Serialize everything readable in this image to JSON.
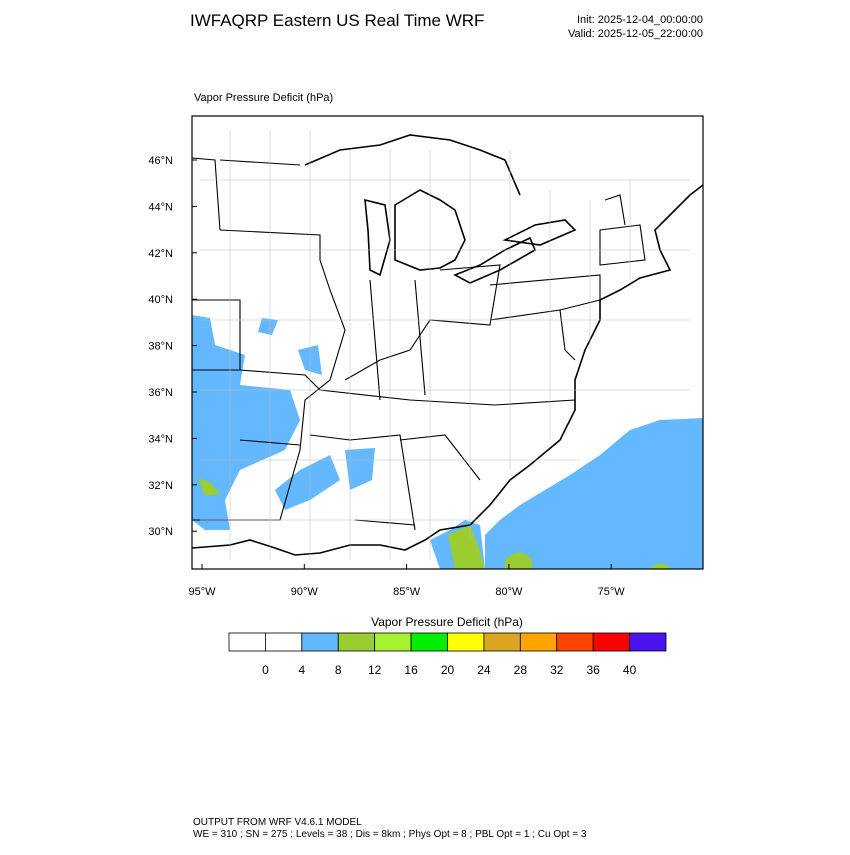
{
  "header": {
    "title": "IWFAQRP Eastern US Real Time WRF",
    "init": "Init: 2025-12-04_00:00:00",
    "valid": "Valid: 2025-12-05_22:00:00"
  },
  "map": {
    "label": "Vapor Pressure Deficit   (hPa)",
    "lat_labels": [
      "46°N",
      "44°N",
      "42°N",
      "40°N",
      "38°N",
      "36°N",
      "34°N",
      "32°N",
      "30°N"
    ],
    "lon_labels": [
      "95°W",
      "90°W",
      "85°W",
      "80°W",
      "75°W"
    ]
  },
  "colorbar": {
    "title": "Vapor Pressure Deficit  (hPa)",
    "ticks": [
      0,
      4,
      8,
      12,
      16,
      20,
      24,
      28,
      32,
      36,
      40
    ],
    "colors": [
      "#ffffff",
      "#ffffff",
      "#63b8ff",
      "#9acd32",
      "#a6f22f",
      "#00ee00",
      "#ffff00",
      "#daa520",
      "#ffa500",
      "#ff4500",
      "#ff0000",
      "#4a14f0"
    ]
  },
  "footer": {
    "line1": "OUTPUT FROM WRF V4.6.1 MODEL",
    "line2": "WE = 310 ; SN = 275 ; Levels = 38 ; Dis = 8km ; Phys Opt = 8 ; PBL Opt = 1 ; Cu Opt = 3"
  }
}
